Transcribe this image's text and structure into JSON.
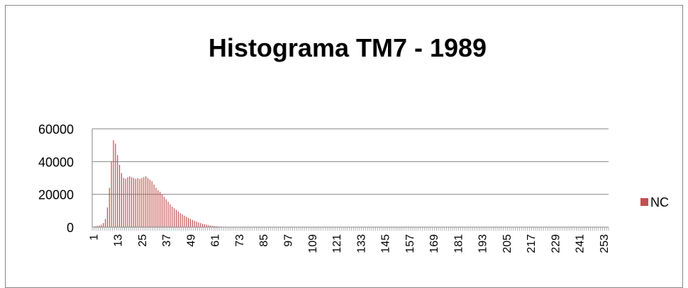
{
  "chart_data": {
    "type": "bar",
    "title": "Histograma TM7 - 1989",
    "categories": [
      1,
      null,
      null,
      null,
      null,
      null,
      null,
      null,
      null,
      null,
      null,
      null,
      13,
      null,
      null,
      null,
      null,
      null,
      null,
      null,
      null,
      null,
      null,
      null,
      25,
      null,
      null,
      null,
      null,
      null,
      null,
      null,
      null,
      null,
      null,
      null,
      37,
      null,
      null,
      null,
      null,
      null,
      null,
      null,
      null,
      null,
      null,
      null,
      49,
      null,
      null,
      null,
      null,
      null,
      null,
      null,
      null,
      null,
      null,
      null,
      61,
      null,
      null,
      null,
      null,
      null,
      null,
      null,
      null,
      null,
      null,
      null,
      73,
      null,
      null,
      null,
      null,
      null,
      null,
      null,
      null,
      null,
      null,
      null,
      85,
      null,
      null,
      null,
      null,
      null,
      null,
      null,
      null,
      null,
      null,
      null,
      97,
      null,
      null,
      null,
      null,
      null,
      null,
      null,
      null,
      null,
      null,
      null,
      109,
      null,
      null,
      null,
      null,
      null,
      null,
      null,
      null,
      null,
      null,
      null,
      121,
      null,
      null,
      null,
      null,
      null,
      null,
      null,
      null,
      null,
      null,
      null,
      133,
      null,
      null,
      null,
      null,
      null,
      null,
      null,
      null,
      null,
      null,
      null,
      145,
      null,
      null,
      null,
      null,
      null,
      null,
      null,
      null,
      null,
      null,
      null,
      157,
      null,
      null,
      null,
      null,
      null,
      null,
      null,
      null,
      null,
      null,
      null,
      169,
      null,
      null,
      null,
      null,
      null,
      null,
      null,
      null,
      null,
      null,
      null,
      181,
      null,
      null,
      null,
      null,
      null,
      null,
      null,
      null,
      null,
      null,
      null,
      193,
      null,
      null,
      null,
      null,
      null,
      null,
      null,
      null,
      null,
      null,
      null,
      205,
      null,
      null,
      null,
      null,
      null,
      null,
      null,
      null,
      null,
      null,
      null,
      217,
      null,
      null,
      null,
      null,
      null,
      null,
      null,
      null,
      null,
      null,
      null,
      229,
      null,
      null,
      null,
      null,
      null,
      null,
      null,
      null,
      null,
      null,
      null,
      241,
      null,
      null,
      null,
      null,
      null,
      null,
      null,
      null,
      null,
      null,
      null,
      253,
      null,
      null
    ],
    "series": [
      {
        "name": "NC",
        "color": "#c0504d",
        "values": [
          300,
          500,
          800,
          1000,
          1500,
          2500,
          5000,
          12000,
          24000,
          40000,
          53000,
          51000,
          44000,
          38000,
          33000,
          30000,
          29500,
          30500,
          31000,
          30500,
          30000,
          29500,
          30000,
          29500,
          30000,
          30500,
          31000,
          30000,
          29000,
          28000,
          26000,
          24000,
          22500,
          21500,
          20000,
          18500,
          17000,
          15500,
          14000,
          12500,
          11500,
          10500,
          9500,
          8500,
          7800,
          7000,
          6300,
          5600,
          5000,
          4400,
          3900,
          3400,
          2900,
          2500,
          2100,
          1800,
          1500,
          1200,
          1000,
          800,
          600,
          500,
          400,
          300,
          200,
          150,
          100,
          50,
          0,
          0,
          0,
          0,
          0,
          0,
          0,
          0,
          0,
          0,
          0,
          0,
          0,
          0,
          0,
          0,
          0,
          0,
          0,
          0,
          0,
          0,
          0,
          0,
          0,
          0,
          0,
          0,
          0,
          0,
          0,
          0,
          0,
          0,
          0,
          0,
          0,
          0,
          0,
          0,
          0,
          0,
          0,
          0,
          0,
          0,
          0,
          0,
          0,
          0,
          0,
          0,
          0,
          0,
          0,
          0,
          0,
          0,
          0,
          0,
          0,
          0,
          0,
          0,
          0,
          0,
          0,
          0,
          0,
          0,
          0,
          0,
          0,
          0,
          0,
          0,
          0,
          0,
          0,
          0,
          0,
          0,
          0,
          0,
          0,
          0,
          0,
          0,
          0,
          0,
          0,
          0,
          0,
          0,
          0,
          0,
          0,
          0,
          0,
          0,
          0,
          0,
          0,
          0,
          0,
          0,
          0,
          0,
          0,
          0,
          0,
          0,
          0,
          0,
          0,
          0,
          0,
          0,
          0,
          0,
          0,
          0,
          0,
          0,
          0,
          0,
          0,
          0,
          0,
          0,
          0,
          0,
          0,
          0,
          0,
          0,
          0,
          0,
          0,
          0,
          0,
          0,
          0,
          0,
          0,
          0,
          0,
          0,
          0,
          0,
          0,
          0,
          0,
          0,
          0,
          0,
          0,
          0,
          0,
          0,
          0,
          0,
          0,
          0,
          0,
          0,
          0,
          0,
          0,
          0,
          0,
          0,
          0,
          0,
          0,
          0,
          0,
          0,
          0,
          0,
          0,
          0,
          0,
          0,
          0,
          0,
          0
        ]
      }
    ],
    "ylim": [
      0,
      60000
    ],
    "yticks": [
      0,
      20000,
      40000,
      60000
    ],
    "grid": true,
    "legend": "right"
  }
}
